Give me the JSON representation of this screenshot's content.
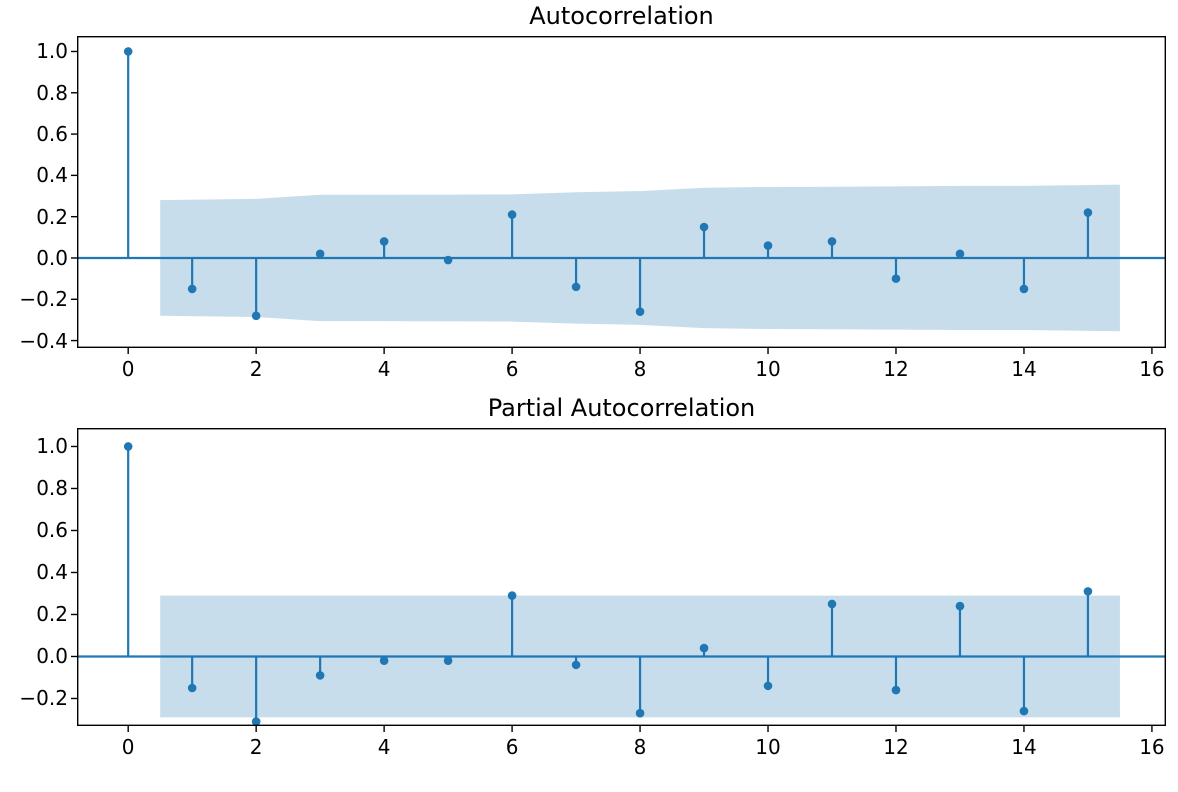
{
  "figure": {
    "background": "#ffffff",
    "line_color": "#1f77b4",
    "band_color": "rgba(31,119,180,0.25)",
    "axis_color": "#000000"
  },
  "chart_data": [
    {
      "type": "stem",
      "title": "Autocorrelation",
      "xlabel": "",
      "ylabel": "",
      "grid": false,
      "legend": "none",
      "x": [
        0,
        1,
        2,
        3,
        4,
        5,
        6,
        7,
        8,
        9,
        10,
        11,
        12,
        13,
        14,
        15
      ],
      "values": [
        1.0,
        -0.15,
        -0.28,
        0.02,
        0.08,
        -0.01,
        0.21,
        -0.14,
        -0.26,
        0.15,
        0.06,
        0.08,
        -0.1,
        0.02,
        -0.15,
        0.22
      ],
      "conf_band": {
        "x": [
          0.5,
          2,
          3,
          4,
          5,
          6,
          7,
          8,
          9,
          10,
          11,
          12,
          13,
          14,
          15.5
        ],
        "halfwidth": [
          0.28,
          0.286,
          0.306,
          0.306,
          0.307,
          0.308,
          0.318,
          0.324,
          0.34,
          0.344,
          0.345,
          0.347,
          0.349,
          0.349,
          0.355
        ]
      },
      "xlim": [
        -0.8,
        16.22
      ],
      "ylim": [
        -0.436,
        1.075
      ],
      "xticks": [
        0,
        2,
        4,
        6,
        8,
        10,
        12,
        14,
        16
      ],
      "yticks": [
        1.0,
        0.8,
        0.6,
        0.4,
        0.2,
        0.0,
        -0.2,
        -0.4
      ]
    },
    {
      "type": "stem",
      "title": "Partial Autocorrelation",
      "xlabel": "",
      "ylabel": "",
      "grid": false,
      "legend": "none",
      "x": [
        0,
        1,
        2,
        3,
        4,
        5,
        6,
        7,
        8,
        9,
        10,
        11,
        12,
        13,
        14,
        15
      ],
      "values": [
        1.0,
        -0.15,
        -0.31,
        -0.09,
        -0.02,
        -0.02,
        0.29,
        -0.04,
        -0.27,
        0.04,
        -0.14,
        0.25,
        -0.16,
        0.24,
        -0.26,
        0.31
      ],
      "conf_band": {
        "x": [
          0.5,
          15.5
        ],
        "halfwidth": [
          0.29,
          0.29
        ]
      },
      "xlim": [
        -0.8,
        16.22
      ],
      "ylim": [
        -0.331,
        1.088
      ],
      "xticks": [
        0,
        2,
        4,
        6,
        8,
        10,
        12,
        14,
        16
      ],
      "yticks": [
        1.0,
        0.8,
        0.6,
        0.4,
        0.2,
        0.0,
        -0.2
      ]
    }
  ]
}
